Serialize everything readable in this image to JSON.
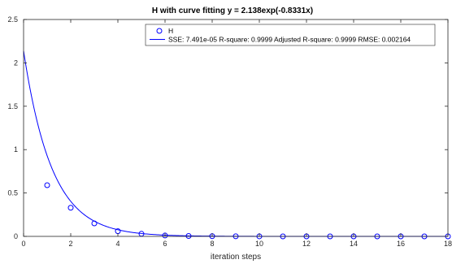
{
  "chart_data": {
    "type": "scatter",
    "title": "H with curve fitting y = 2.138exp(-0.8331x)",
    "xlabel": "iteration steps",
    "ylabel": "",
    "xlim": [
      0,
      18
    ],
    "ylim": [
      0,
      2.5
    ],
    "x_ticks": [
      "0",
      "2",
      "4",
      "6",
      "8",
      "10",
      "12",
      "14",
      "16",
      "18"
    ],
    "y_ticks": [
      "0",
      "0.5",
      "1",
      "1.5",
      "2",
      "2.5"
    ],
    "grid": false,
    "legend_position": "top-right",
    "colors": {
      "series": "#0000ff",
      "axis": "#262626"
    },
    "series": [
      {
        "name": "H",
        "kind": "markers",
        "marker": "circle",
        "x": [
          1,
          2,
          3,
          4,
          5,
          6,
          7,
          8,
          9,
          10,
          11,
          12,
          13,
          14,
          15,
          16,
          17,
          18
        ],
        "y": [
          0.59,
          0.33,
          0.15,
          0.06,
          0.03,
          0.01,
          0.005,
          0.002,
          0.001,
          0.0005,
          0.0002,
          0.0001,
          0.0001,
          0,
          0,
          0,
          0,
          0
        ]
      },
      {
        "name": "SSE: 7.491e-05 R-square: 0.9999 Adjusted R-square: 0.9999 RMSE: 0.002164",
        "kind": "fit-line",
        "a": 2.138,
        "b": -0.8331,
        "x_range": [
          0,
          18
        ]
      }
    ]
  }
}
